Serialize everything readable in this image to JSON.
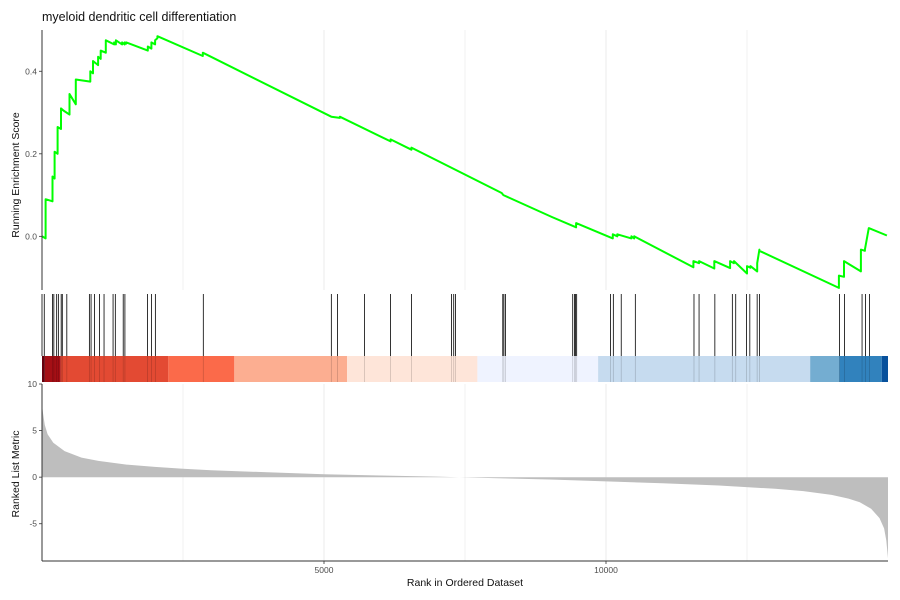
{
  "chart_data": {
    "type": "line",
    "title": "myeloid dendritic cell differentiation",
    "ylabel": "Running Enrichment Score",
    "xlabel": "Rank in Ordered Dataset",
    "xlim": [
      0,
      15000
    ],
    "ylim": [
      -0.13,
      0.5
    ],
    "x_ticks": [
      5000,
      10000
    ],
    "x_tick_labels": [
      "5000",
      "10000"
    ],
    "y_ticks": [
      0.0,
      0.2,
      0.4
    ],
    "y_tick_labels": [
      "0.0",
      "0.2",
      "0.4"
    ],
    "line_color": "#00ff00",
    "grid": true,
    "series": [
      {
        "x": [
          0,
          64,
          64,
          186,
          186,
          223,
          223,
          276,
          276,
          336,
          336,
          380,
          380,
          488,
          488,
          600,
          600,
          857,
          857,
          905,
          905,
          995,
          995,
          1040,
          1040,
          1131,
          1131,
          1278,
          1278,
          1310,
          1310,
          1420,
          1420,
          1466,
          1466,
          1493,
          1493,
          1876,
          1876,
          1939,
          1939,
          2005,
          2005,
          2046,
          2046,
          2851,
          2851,
          5130,
          5130,
          5280,
          5280,
          6180,
          6180,
          6550,
          6550,
          8150,
          8150,
          8180,
          8180,
          9040,
          9040,
          9470,
          9470,
          10120,
          10120,
          10200,
          10200,
          10450,
          10450,
          10500,
          10500,
          11550,
          11550,
          11650,
          11650,
          11920,
          11920,
          12200,
          12200,
          12270,
          12270,
          12500,
          12500,
          12560,
          12560,
          12680,
          12680,
          12720,
          12720,
          14130,
          14130,
          14220,
          14220,
          14520,
          14520,
          14590,
          14590,
          14660,
          14660,
          14980
        ],
        "y": [
          0.0,
          -0.005,
          0.09,
          0.085,
          0.145,
          0.14,
          0.205,
          0.2,
          0.265,
          0.26,
          0.31,
          0.305,
          0.305,
          0.295,
          0.345,
          0.32,
          0.38,
          0.375,
          0.4,
          0.395,
          0.425,
          0.415,
          0.435,
          0.43,
          0.45,
          0.445,
          0.475,
          0.465,
          0.47,
          0.465,
          0.475,
          0.465,
          0.47,
          0.465,
          0.47,
          0.467,
          0.47,
          0.45,
          0.46,
          0.455,
          0.47,
          0.465,
          0.475,
          0.48,
          0.485,
          0.437,
          0.445,
          0.29,
          0.29,
          0.287,
          0.29,
          0.23,
          0.235,
          0.21,
          0.215,
          0.105,
          0.105,
          0.1,
          0.1,
          0.047,
          0.047,
          0.022,
          0.032,
          -0.005,
          0.005,
          0.0,
          0.005,
          -0.005,
          0.0,
          -0.005,
          0.0,
          -0.075,
          -0.06,
          -0.065,
          -0.06,
          -0.078,
          -0.06,
          -0.077,
          -0.06,
          -0.065,
          -0.06,
          -0.09,
          -0.072,
          -0.076,
          -0.072,
          -0.085,
          -0.065,
          -0.032,
          -0.035,
          -0.125,
          -0.095,
          -0.098,
          -0.06,
          -0.085,
          -0.032,
          -0.035,
          -0.032,
          0.02,
          0.02,
          0.002
        ]
      }
    ],
    "hits": [
      40,
      186,
      210,
      260,
      290,
      340,
      360,
      440,
      840,
      870,
      930,
      1020,
      1100,
      1260,
      1300,
      1440,
      1470,
      1870,
      1940,
      2010,
      2860,
      5130,
      5240,
      5720,
      6180,
      6550,
      7260,
      7300,
      7330,
      8170,
      8190,
      8220,
      9410,
      9440,
      9460,
      9480,
      10080,
      10130,
      10270,
      10520,
      11560,
      11650,
      11930,
      12240,
      12300,
      12490,
      12550,
      12680,
      12720,
      14140,
      14230,
      14540,
      14600,
      14670
    ],
    "rank_color_bands": [
      {
        "from": 0,
        "to": 50,
        "color": "#67000d"
      },
      {
        "from": 50,
        "to": 330,
        "color": "#a50f15"
      },
      {
        "from": 330,
        "to": 2240,
        "color": "#e34a33"
      },
      {
        "from": 2240,
        "to": 3410,
        "color": "#fb6a4a"
      },
      {
        "from": 3410,
        "to": 5410,
        "color": "#fcae91"
      },
      {
        "from": 5410,
        "to": 7720,
        "color": "#fee5d9"
      },
      {
        "from": 7720,
        "to": 9860,
        "color": "#eff3ff"
      },
      {
        "from": 9860,
        "to": 13620,
        "color": "#c6dbef"
      },
      {
        "from": 13620,
        "to": 14140,
        "color": "#74add1"
      },
      {
        "from": 14140,
        "to": 14890,
        "color": "#3182bd"
      },
      {
        "from": 14890,
        "to": 15000,
        "color": "#08519c"
      }
    ],
    "ranked_metric": {
      "ylabel": "Ranked List Metric",
      "ylim": [
        -9,
        10
      ],
      "y_ticks": [
        -5,
        0,
        5,
        10
      ],
      "y_tick_labels": [
        "-5",
        "0",
        "5",
        "10"
      ],
      "fill_color": "#bebebe",
      "x": [
        0,
        20,
        50,
        100,
        200,
        400,
        700,
        1000,
        1500,
        2000,
        2500,
        3000,
        4000,
        5000,
        6000,
        7000,
        7400,
        8000,
        9000,
        10000,
        11000,
        12000,
        13000,
        13500,
        14000,
        14300,
        14500,
        14700,
        14850,
        14930,
        14970,
        15000
      ],
      "y": [
        7.8,
        6.8,
        5.6,
        4.6,
        3.7,
        2.8,
        2.1,
        1.75,
        1.35,
        1.1,
        0.9,
        0.75,
        0.52,
        0.32,
        0.18,
        0.06,
        0.0,
        -0.1,
        -0.25,
        -0.45,
        -0.65,
        -0.9,
        -1.25,
        -1.5,
        -1.9,
        -2.3,
        -2.7,
        -3.4,
        -4.4,
        -5.5,
        -6.8,
        -8.7
      ]
    }
  }
}
